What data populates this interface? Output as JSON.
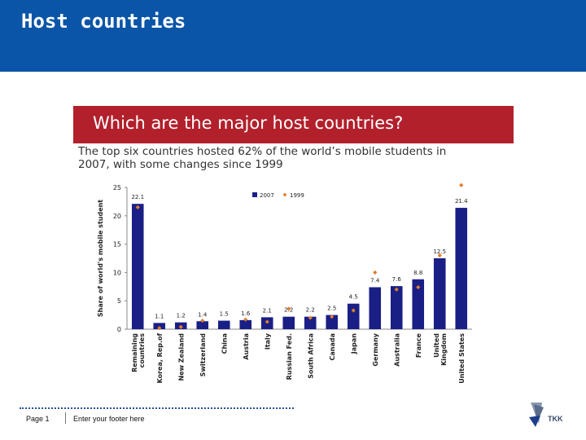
{
  "slide": {
    "title": "Host countries"
  },
  "banner": {
    "text": "Which are the major host countries?"
  },
  "subtitle": {
    "line1": "The top six countries hosted 62% of the world’s mobile students in",
    "line2": "2007, with some changes since 1999"
  },
  "footer": {
    "page_label": "Page 1",
    "text": "Enter your footer here",
    "logo_text": "TKK"
  },
  "colors": {
    "header": "#0a55a7",
    "banner": "#b2202c",
    "bars_2007": "#1a1f86",
    "markers_1999": "#e07b2a"
  },
  "chart_data": {
    "type": "bar",
    "ylabel": "Share of world's mobile student",
    "ylim": [
      0,
      25
    ],
    "yticks": [
      0,
      5,
      10,
      15,
      20,
      25
    ],
    "grid": false,
    "legend_position": "top-center",
    "categories": [
      [
        "Remaining",
        "countries"
      ],
      [
        "Korea, Rep.of"
      ],
      [
        "New Zealand"
      ],
      [
        "Switzerland"
      ],
      [
        "China"
      ],
      [
        "Austria"
      ],
      [
        "Italy"
      ],
      [
        "Russian Fed."
      ],
      [
        "South Africa"
      ],
      [
        "Canada"
      ],
      [
        "Japan"
      ],
      [
        "Germany"
      ],
      [
        "Australia"
      ],
      [
        "France"
      ],
      [
        "United",
        "Kingdom"
      ],
      [
        "United States"
      ]
    ],
    "series": [
      {
        "name": "2007",
        "color": "#1a1f86",
        "values": [
          22.1,
          1.1,
          1.2,
          1.4,
          1.5,
          1.6,
          2.1,
          2.2,
          2.2,
          2.5,
          4.5,
          7.4,
          7.6,
          8.8,
          12.5,
          21.4
        ],
        "labels": [
          "22.1",
          "1.1",
          "1.2",
          "1.4",
          "1.5",
          "1.6",
          "2.1",
          "2.2",
          "2.2",
          "2.5",
          "4.5",
          "7.4",
          "7.6",
          "8.8",
          "12.5",
          "21.4"
        ]
      },
      {
        "name": "1999",
        "color": "#e07b2a",
        "values": [
          21.5,
          0.2,
          0.4,
          1.5,
          null,
          1.7,
          1.3,
          3.6,
          2.0,
          2.2,
          3.3,
          10.0,
          7.0,
          7.4,
          13.0,
          25.4
        ]
      }
    ]
  }
}
